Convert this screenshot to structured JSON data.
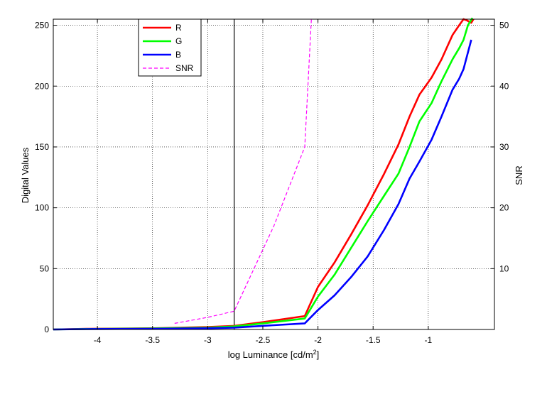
{
  "chart_data": {
    "type": "line",
    "title": "",
    "xlabel": "log Luminance [cd/m",
    "xlabel_superscript": "2",
    "xlabel_suffix": "]",
    "ylabel": "Digital Values",
    "y2label": "SNR",
    "xlim": [
      -4.4,
      -0.4
    ],
    "ylim": [
      0,
      255
    ],
    "y2lim": [
      0,
      51
    ],
    "xticks": [
      -4,
      -3.5,
      -3,
      -2.5,
      -2,
      -1.5,
      -1
    ],
    "xtick_labels": [
      "-4",
      "-3.5",
      "-3",
      "-2.5",
      "-2",
      "-1.5",
      "-1"
    ],
    "yticks": [
      0,
      50,
      100,
      150,
      200,
      250
    ],
    "ytick_labels": [
      "0",
      "50",
      "100",
      "150",
      "200",
      "250"
    ],
    "y2ticks": [
      10,
      20,
      30,
      40,
      50
    ],
    "y2tick_labels": [
      "10",
      "20",
      "30",
      "40",
      "50"
    ],
    "grid": true,
    "legend_position": "top-center",
    "vertical_line_x": -2.76,
    "series": [
      {
        "name": "R",
        "color": "#ff0000",
        "axis": "left",
        "dashed": false,
        "x": [
          -4.4,
          -4.1,
          -3.5,
          -3.0,
          -2.76,
          -2.5,
          -2.12,
          -2.0,
          -1.85,
          -1.7,
          -1.55,
          -1.4,
          -1.27,
          -1.17,
          -1.08,
          -0.97,
          -0.88,
          -0.78,
          -0.72,
          -0.68,
          -0.65,
          -0.61,
          -0.59
        ],
        "y": [
          0,
          0.5,
          1,
          2,
          3,
          6,
          11,
          35,
          55,
          78,
          102,
          128,
          152,
          175,
          193,
          207,
          222,
          242,
          250,
          255,
          254,
          252,
          255
        ]
      },
      {
        "name": "G",
        "color": "#00ff00",
        "axis": "left",
        "dashed": false,
        "x": [
          -4.4,
          -4.1,
          -3.5,
          -3.0,
          -2.76,
          -2.5,
          -2.12,
          -2.0,
          -1.85,
          -1.7,
          -1.55,
          -1.4,
          -1.27,
          -1.17,
          -1.08,
          -0.97,
          -0.88,
          -0.78,
          -0.72,
          -0.68,
          -0.64,
          -0.6
        ],
        "y": [
          0,
          0.4,
          0.8,
          1.5,
          2.5,
          5,
          9,
          27,
          45,
          67,
          89,
          110,
          128,
          150,
          171,
          186,
          204,
          222,
          231,
          238,
          250,
          256
        ]
      },
      {
        "name": "B",
        "color": "#0000ff",
        "axis": "left",
        "dashed": false,
        "x": [
          -4.4,
          -4.1,
          -3.5,
          -3.0,
          -2.76,
          -2.5,
          -2.12,
          -2.0,
          -1.85,
          -1.7,
          -1.55,
          -1.4,
          -1.27,
          -1.17,
          -1.08,
          -0.97,
          -0.88,
          -0.78,
          -0.72,
          -0.68,
          -0.61
        ],
        "y": [
          0,
          0.3,
          0.6,
          1,
          1.5,
          3,
          5,
          16,
          28,
          43,
          60,
          82,
          103,
          124,
          138,
          156,
          175,
          197,
          206,
          214,
          238
        ]
      },
      {
        "name": "SNR",
        "color": "#ff00ff",
        "axis": "right",
        "dashed": true,
        "x": [
          -3.3,
          -3.0,
          -2.76,
          -2.4,
          -2.12,
          -2.06
        ],
        "y": [
          1,
          2,
          3,
          17,
          30,
          51
        ]
      }
    ]
  }
}
